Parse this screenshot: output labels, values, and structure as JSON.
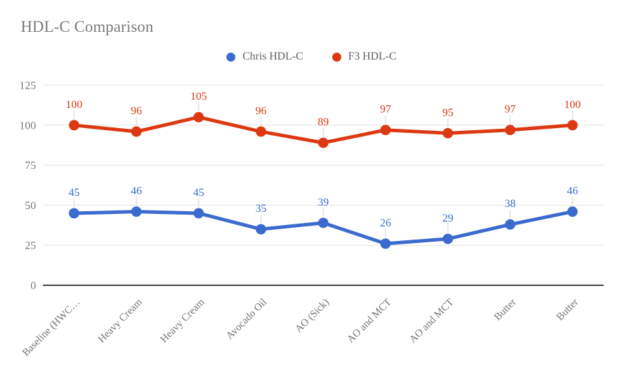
{
  "chart_data": {
    "type": "line",
    "title": "HDL-C Comparison",
    "categories": [
      "Baseline (HWC…",
      "Heavy Cream",
      "Heavy Cream",
      "Avocado Oil",
      "AO (Sick)",
      "AO and MCT",
      "AO and MCT",
      "Butter",
      "Butter"
    ],
    "series": [
      {
        "name": "Chris HDL-C",
        "color": "#3b6bce",
        "values": [
          45,
          46,
          45,
          35,
          39,
          26,
          29,
          38,
          46
        ]
      },
      {
        "name": "F3 HDL-C",
        "color": "#dc3912",
        "values": [
          100,
          96,
          105,
          96,
          89,
          97,
          95,
          97,
          100
        ]
      }
    ],
    "ylim": [
      0,
      125
    ],
    "yticks": [
      0,
      25,
      50,
      75,
      100,
      125
    ],
    "grid": true,
    "legend_position": "top",
    "data_labels": true
  },
  "style_colors": {
    "title_text": "#7a7a7a",
    "axis_text": "#757575",
    "legend_text": "#5f5f5f",
    "gridline": "#e3e3e3",
    "zero_axis": "#424242",
    "leader_line": "#e0e0e0",
    "background": "#ffffff"
  }
}
